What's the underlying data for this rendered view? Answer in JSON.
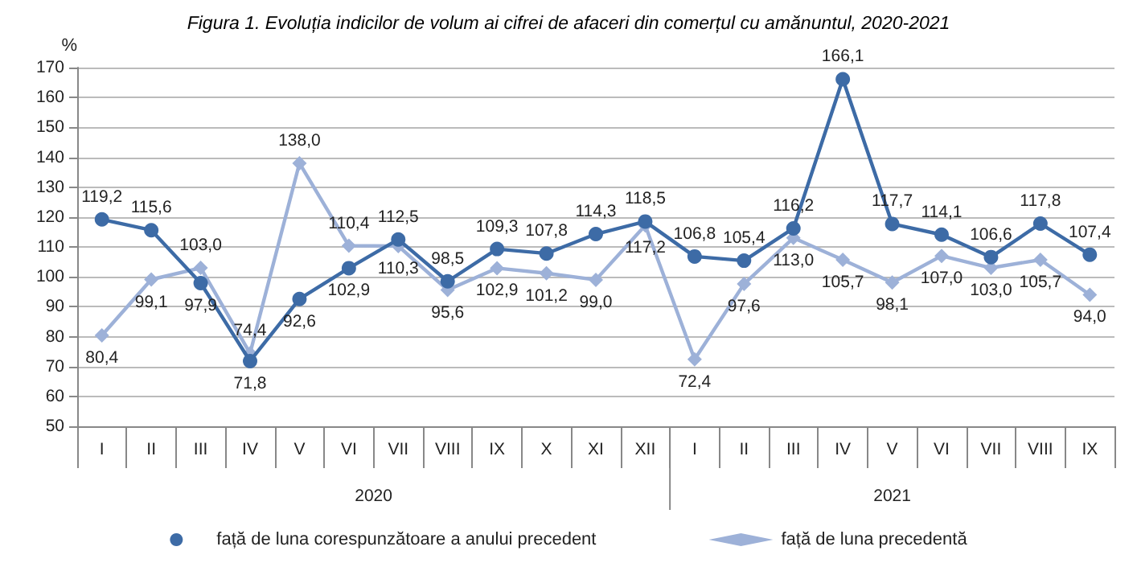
{
  "chart_data": {
    "type": "line",
    "title": "Figura 1. Evoluția indicilor de volum ai cifrei de afaceri din comerțul cu amănuntul, 2020-2021",
    "ylabel": "%",
    "categories": [
      "I",
      "II",
      "III",
      "IV",
      "V",
      "VI",
      "VII",
      "VIII",
      "IX",
      "X",
      "XI",
      "XII",
      "I",
      "II",
      "III",
      "IV",
      "V",
      "VI",
      "VII",
      "VIII",
      "IX"
    ],
    "annotations": [
      "2020",
      "2021"
    ],
    "series": [
      {
        "name": "față de luna corespunzătoare a anului precedent",
        "color": "#3d6ba6",
        "marker": "circle",
        "values": [
          119.2,
          115.6,
          97.9,
          71.8,
          92.6,
          102.9,
          112.5,
          98.5,
          109.3,
          107.8,
          114.3,
          118.5,
          106.8,
          105.4,
          116.2,
          166.1,
          117.7,
          114.1,
          106.6,
          117.8,
          107.4
        ],
        "value_labels": [
          "119,2",
          "115,6",
          "97,9",
          "71,8",
          "92,6",
          "102,9",
          "112,5",
          "98,5",
          "109,3",
          "107,8",
          "114,3",
          "118,5",
          "106,8",
          "105,4",
          "116,2",
          "166,1",
          "117,7",
          "114,1",
          "106,6",
          "117,8",
          "107,4"
        ]
      },
      {
        "name": "față de luna precedentă",
        "color": "#9db1d8",
        "marker": "diamond",
        "values": [
          80.4,
          99.1,
          103.0,
          74.4,
          138.0,
          110.4,
          110.3,
          95.6,
          102.9,
          101.2,
          99.0,
          117.2,
          72.4,
          97.6,
          113.0,
          105.7,
          98.1,
          107.0,
          103.0,
          105.7,
          94.0
        ],
        "value_labels": [
          "80,4",
          "99,1",
          "103,0",
          "74,4",
          "138,0",
          "110,4",
          "110,3",
          "95,6",
          "102,9",
          "101,2",
          "99,0",
          "117,2",
          "72,4",
          "97,6",
          "113,0",
          "105,7",
          "98,1",
          "107,0",
          "103,0",
          "105,7",
          "94,0"
        ]
      }
    ],
    "ylim": [
      50,
      170
    ],
    "yticks": [
      50,
      60,
      70,
      80,
      90,
      100,
      110,
      120,
      130,
      140,
      150,
      160,
      170
    ],
    "grid": "y",
    "legend": "bottom",
    "line_style": "solid"
  }
}
